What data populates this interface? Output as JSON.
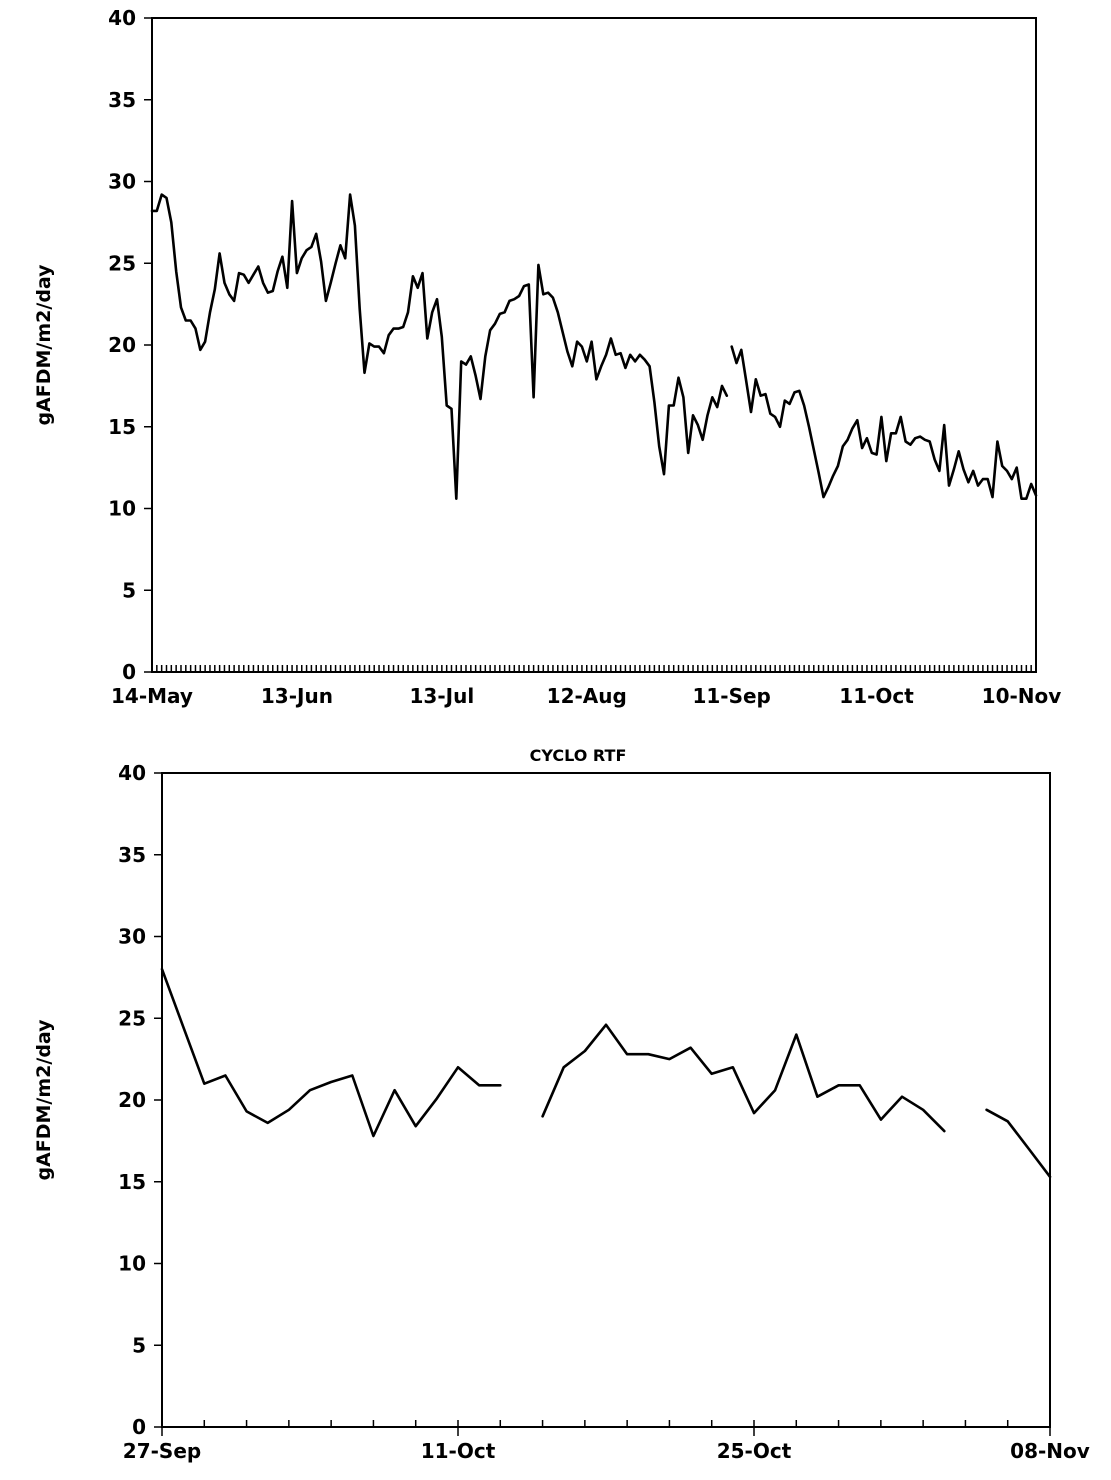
{
  "chart_data": [
    {
      "type": "line",
      "title": "",
      "ylabel": "gAFDM/m2/day",
      "xlabel": "",
      "ylim": [
        0,
        40
      ],
      "yticks": [
        "0",
        "5",
        "10",
        "15",
        "20",
        "25",
        "30",
        "35",
        "40"
      ],
      "xtick_labels": [
        "14-May",
        "13-Jun",
        "13-Jul",
        "12-Aug",
        "11-Sep",
        "11-Oct",
        "10-Nov"
      ],
      "xtick_days": [
        0,
        30,
        60,
        90,
        120,
        150,
        180
      ],
      "xlim_days": [
        0,
        183
      ],
      "grid": false,
      "series": [
        {
          "segments": [
            [
              [
                0,
                28.2
              ],
              [
                1,
                28.2
              ],
              [
                2,
                29.2
              ],
              [
                3,
                29.0
              ],
              [
                4,
                27.5
              ],
              [
                5,
                24.5
              ],
              [
                6,
                22.3
              ],
              [
                7,
                21.5
              ],
              [
                8,
                21.5
              ],
              [
                9,
                21.0
              ],
              [
                10,
                19.7
              ],
              [
                11,
                20.2
              ],
              [
                12,
                22.0
              ],
              [
                13,
                23.4
              ],
              [
                14,
                25.6
              ],
              [
                15,
                23.8
              ],
              [
                16,
                23.1
              ],
              [
                17,
                22.7
              ],
              [
                18,
                24.4
              ],
              [
                19,
                24.3
              ],
              [
                20,
                23.8
              ],
              [
                21,
                24.3
              ],
              [
                22,
                24.8
              ],
              [
                23,
                23.8
              ],
              [
                24,
                23.2
              ],
              [
                25,
                23.3
              ],
              [
                26,
                24.5
              ],
              [
                27,
                25.4
              ],
              [
                28,
                23.5
              ],
              [
                29,
                28.8
              ],
              [
                30,
                24.4
              ],
              [
                31,
                25.3
              ],
              [
                32,
                25.8
              ],
              [
                33,
                26.0
              ],
              [
                34,
                26.8
              ],
              [
                35,
                25.1
              ],
              [
                36,
                22.7
              ],
              [
                37,
                23.8
              ],
              [
                38,
                25.0
              ],
              [
                39,
                26.1
              ],
              [
                40,
                25.3
              ],
              [
                41,
                29.2
              ],
              [
                42,
                27.3
              ],
              [
                43,
                22.2
              ],
              [
                44,
                18.3
              ],
              [
                45,
                20.1
              ],
              [
                46,
                19.9
              ],
              [
                47,
                19.9
              ],
              [
                48,
                19.5
              ],
              [
                49,
                20.6
              ],
              [
                50,
                21.0
              ],
              [
                51,
                21.0
              ],
              [
                52,
                21.1
              ],
              [
                53,
                22.0
              ],
              [
                54,
                24.2
              ],
              [
                55,
                23.5
              ],
              [
                56,
                24.4
              ],
              [
                57,
                20.4
              ],
              [
                58,
                22.0
              ],
              [
                59,
                22.8
              ],
              [
                60,
                20.5
              ],
              [
                61,
                16.3
              ],
              [
                62,
                16.1
              ],
              [
                63,
                10.6
              ],
              [
                64,
                19.0
              ],
              [
                65,
                18.8
              ],
              [
                66,
                19.3
              ],
              [
                67,
                18.1
              ],
              [
                68,
                16.7
              ],
              [
                69,
                19.3
              ],
              [
                70,
                20.9
              ],
              [
                71,
                21.3
              ],
              [
                72,
                21.9
              ],
              [
                73,
                22.0
              ],
              [
                74,
                22.7
              ],
              [
                75,
                22.8
              ],
              [
                76,
                23.0
              ],
              [
                77,
                23.6
              ],
              [
                78,
                23.7
              ],
              [
                79,
                16.8
              ],
              [
                80,
                24.9
              ],
              [
                81,
                23.1
              ],
              [
                82,
                23.2
              ],
              [
                83,
                22.9
              ],
              [
                84,
                22.0
              ],
              [
                85,
                20.8
              ],
              [
                86,
                19.6
              ],
              [
                87,
                18.7
              ],
              [
                88,
                20.2
              ],
              [
                89,
                19.9
              ],
              [
                90,
                19.0
              ],
              [
                91,
                20.2
              ],
              [
                92,
                17.9
              ],
              [
                93,
                18.7
              ],
              [
                94,
                19.4
              ],
              [
                95,
                20.4
              ],
              [
                96,
                19.4
              ],
              [
                97,
                19.5
              ],
              [
                98,
                18.6
              ],
              [
                99,
                19.4
              ],
              [
                100,
                19.0
              ],
              [
                101,
                19.4
              ],
              [
                102,
                19.1
              ],
              [
                103,
                18.7
              ],
              [
                104,
                16.5
              ],
              [
                105,
                13.8
              ],
              [
                106,
                12.1
              ],
              [
                107,
                16.3
              ],
              [
                108,
                16.3
              ],
              [
                109,
                18.0
              ],
              [
                110,
                16.8
              ],
              [
                111,
                13.4
              ],
              [
                112,
                15.7
              ],
              [
                113,
                15.1
              ],
              [
                114,
                14.2
              ],
              [
                115,
                15.7
              ],
              [
                116,
                16.8
              ],
              [
                117,
                16.2
              ],
              [
                118,
                17.5
              ],
              [
                119,
                16.9
              ]
            ],
            [
              [
                120,
                19.9
              ],
              [
                121,
                18.9
              ],
              [
                122,
                19.7
              ],
              [
                123,
                17.8
              ],
              [
                124,
                15.9
              ],
              [
                125,
                17.9
              ],
              [
                126,
                16.9
              ],
              [
                127,
                17.0
              ],
              [
                128,
                15.8
              ],
              [
                129,
                15.6
              ],
              [
                130,
                15.0
              ],
              [
                131,
                16.6
              ],
              [
                132,
                16.4
              ],
              [
                133,
                17.1
              ],
              [
                134,
                17.2
              ],
              [
                135,
                16.3
              ],
              [
                136,
                15.0
              ],
              [
                137,
                13.6
              ],
              [
                138,
                12.2
              ],
              [
                139,
                10.7
              ],
              [
                140,
                11.3
              ],
              [
                141,
                12.0
              ],
              [
                142,
                12.6
              ],
              [
                143,
                13.8
              ],
              [
                144,
                14.2
              ],
              [
                145,
                14.9
              ],
              [
                146,
                15.4
              ],
              [
                147,
                13.7
              ],
              [
                148,
                14.3
              ],
              [
                149,
                13.4
              ],
              [
                150,
                13.3
              ],
              [
                151,
                15.6
              ],
              [
                152,
                12.9
              ],
              [
                153,
                14.6
              ],
              [
                154,
                14.6
              ],
              [
                155,
                15.6
              ],
              [
                156,
                14.1
              ],
              [
                157,
                13.9
              ],
              [
                158,
                14.3
              ],
              [
                159,
                14.4
              ],
              [
                160,
                14.2
              ],
              [
                161,
                14.1
              ],
              [
                162,
                13.0
              ],
              [
                163,
                12.3
              ],
              [
                164,
                15.1
              ],
              [
                165,
                11.4
              ],
              [
                166,
                12.4
              ],
              [
                167,
                13.5
              ],
              [
                168,
                12.4
              ],
              [
                169,
                11.6
              ],
              [
                170,
                12.3
              ],
              [
                171,
                11.4
              ],
              [
                172,
                11.8
              ],
              [
                173,
                11.8
              ],
              [
                174,
                10.7
              ],
              [
                175,
                14.1
              ],
              [
                176,
                12.6
              ],
              [
                177,
                12.3
              ],
              [
                178,
                11.8
              ],
              [
                179,
                12.5
              ],
              [
                180,
                10.6
              ],
              [
                181,
                10.6
              ],
              [
                182,
                11.5
              ],
              [
                183,
                10.8
              ]
            ]
          ]
        }
      ]
    },
    {
      "type": "line",
      "title": "CYCLO RTF",
      "ylabel": "gAFDM/m2/day",
      "xlabel": "",
      "ylim": [
        0,
        40
      ],
      "yticks": [
        "0",
        "5",
        "10",
        "15",
        "20",
        "25",
        "30",
        "35",
        "40"
      ],
      "xtick_labels": [
        "27-Sep",
        "11-Oct",
        "25-Oct",
        "08-Nov"
      ],
      "xtick_days": [
        0,
        14,
        28,
        42
      ],
      "xlim_days": [
        0,
        42
      ],
      "grid": false,
      "series": [
        {
          "segments": [
            [
              [
                0,
                28.0
              ],
              [
                1,
                24.5
              ],
              [
                2,
                21.0
              ],
              [
                3,
                21.5
              ],
              [
                4,
                19.3
              ],
              [
                5,
                18.6
              ],
              [
                6,
                19.4
              ],
              [
                7,
                20.6
              ],
              [
                8,
                21.1
              ],
              [
                9,
                21.5
              ],
              [
                10,
                17.8
              ],
              [
                11,
                20.6
              ],
              [
                12,
                18.4
              ],
              [
                13,
                20.1
              ],
              [
                14,
                22.0
              ],
              [
                15,
                20.9
              ],
              [
                16,
                20.9
              ]
            ],
            [
              [
                18,
                19.0
              ],
              [
                19,
                22.0
              ],
              [
                20,
                23.0
              ],
              [
                21,
                24.6
              ],
              [
                22,
                22.8
              ],
              [
                23,
                22.8
              ],
              [
                24,
                22.5
              ],
              [
                25,
                23.2
              ],
              [
                26,
                21.6
              ],
              [
                27,
                22.0
              ],
              [
                28,
                19.2
              ],
              [
                29,
                20.6
              ],
              [
                30,
                24.0
              ],
              [
                31,
                20.2
              ],
              [
                32,
                20.9
              ],
              [
                33,
                20.9
              ],
              [
                34,
                18.8
              ],
              [
                35,
                20.2
              ],
              [
                36,
                19.4
              ],
              [
                37,
                18.1
              ]
            ],
            [
              [
                39,
                19.4
              ],
              [
                40,
                18.7
              ],
              [
                41,
                17.0
              ],
              [
                42,
                15.3
              ]
            ]
          ]
        }
      ]
    }
  ]
}
